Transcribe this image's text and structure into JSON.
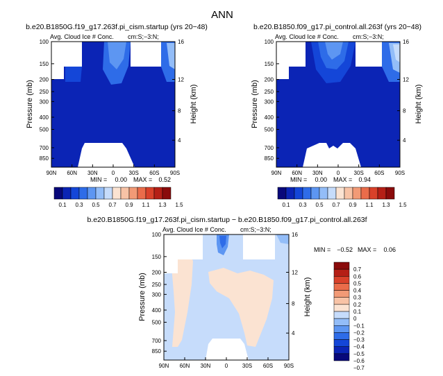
{
  "title": "ANN",
  "colorbar_top": {
    "labels": [
      "0.1",
      "0.3",
      "0.5",
      "0.7",
      "0.9",
      "1.1",
      "1.3",
      "1.5"
    ],
    "colors": [
      "#08087a",
      "#0b24b5",
      "#1446d8",
      "#2e6ce8",
      "#5d96f2",
      "#93bdf8",
      "#c6dcfb",
      "#fbe3d2",
      "#f8c3a6",
      "#f29a76",
      "#ea6c4a",
      "#d9412a",
      "#b51f16",
      "#8a0b0b"
    ]
  },
  "colorbar_diff": {
    "labels": [
      "0.7",
      "0.6",
      "0.5",
      "0.4",
      "0.3",
      "0.2",
      "0.1",
      "0",
      "−0.1",
      "−0.2",
      "−0.3",
      "−0.4",
      "−0.5",
      "−0.6",
      "−0.7"
    ],
    "colors": [
      "#8a0b0b",
      "#b51f16",
      "#d9412a",
      "#ea6c4a",
      "#f29a76",
      "#f8c3a6",
      "#fbe3d2",
      "#c6dcfb",
      "#93bdf8",
      "#5d96f2",
      "#2e6ce8",
      "#1446d8",
      "#0b24b5",
      "#08087a"
    ]
  },
  "chart_data": [
    {
      "type": "heatmap",
      "id": "panel_left",
      "case_title": "b.e20.B1850G.f19_g17.263f.pi_cism.startup (yrs 20−48)",
      "subtitle": "Avg. Cloud Ice # Conc.",
      "subtitle_right": "cm:S;−3:N;",
      "stats": {
        "min_label": "MIN =",
        "min": "0.00",
        "max_label": "MAX =",
        "max": "0.52"
      },
      "xlabel": "",
      "ylabel": "Pressure (mb)",
      "ylabel_right": "Height (km)",
      "x_ticks": [
        "90N",
        "60N",
        "30N",
        "0",
        "30S",
        "60S",
        "90S"
      ],
      "y_ticks": [
        "100",
        "150",
        "200",
        "250",
        "300",
        "400",
        "500",
        "700",
        "850"
      ],
      "y_ticks_right": [
        "16",
        "12",
        "8",
        "4"
      ],
      "ylim": [
        100,
        1000
      ],
      "xlim": [
        "90N",
        "90S"
      ]
    },
    {
      "type": "heatmap",
      "id": "panel_right",
      "case_title": "b.e20.B1850.f09_g17.pi_control.all.263f (yrs 20−48)",
      "subtitle": "Avg. Cloud Ice # Conc.",
      "subtitle_right": "cm:S;−3:N;",
      "stats": {
        "min_label": "MIN =",
        "min": "0.00",
        "max_label": "MAX =",
        "max": "0.94"
      },
      "xlabel": "",
      "ylabel": "Pressure (mb)",
      "ylabel_right": "Height (km)",
      "x_ticks": [
        "90N",
        "60N",
        "30N",
        "0",
        "30S",
        "60S",
        "90S"
      ],
      "y_ticks": [
        "100",
        "150",
        "200",
        "250",
        "300",
        "400",
        "500",
        "700",
        "850"
      ],
      "y_ticks_right": [
        "16",
        "12",
        "8",
        "4"
      ],
      "ylim": [
        100,
        1000
      ],
      "xlim": [
        "90N",
        "90S"
      ]
    },
    {
      "type": "heatmap",
      "id": "panel_diff",
      "case_title": "b.e20.B1850G.f19_g17.263f.pi_cism.startup − b.e20.B1850.f09_g17.pi_control.all.263f",
      "subtitle": "Avg. Cloud Ice # Conc.",
      "subtitle_right": "cm:S;−3:N;",
      "stats": {
        "min_label": "MIN =",
        "min": "−0.52",
        "max_label": "MAX =",
        "max": "0.06"
      },
      "xlabel": "",
      "ylabel": "Pressure (mb)",
      "ylabel_right": "Height (km)",
      "x_ticks": [
        "90N",
        "60N",
        "30N",
        "0",
        "30S",
        "60S",
        "90S"
      ],
      "y_ticks": [
        "100",
        "150",
        "200",
        "250",
        "300",
        "400",
        "500",
        "700",
        "850"
      ],
      "y_ticks_right": [
        "16",
        "12",
        "8",
        "4"
      ],
      "ylim": [
        100,
        1000
      ],
      "xlim": [
        "90N",
        "90S"
      ]
    }
  ]
}
